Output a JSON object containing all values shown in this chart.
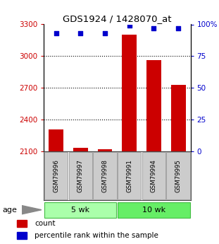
{
  "title": "GDS1924 / 1428070_at",
  "samples": [
    "GSM79996",
    "GSM79997",
    "GSM79998",
    "GSM79991",
    "GSM79994",
    "GSM79995"
  ],
  "counts": [
    2310,
    2130,
    2120,
    3200,
    2960,
    2730
  ],
  "percentiles": [
    93,
    93,
    93,
    99,
    97,
    97
  ],
  "ylim_left": [
    2100,
    3300
  ],
  "ylim_right": [
    0,
    100
  ],
  "yticks_left": [
    2100,
    2400,
    2700,
    3000,
    3300
  ],
  "yticks_right": [
    0,
    25,
    50,
    75,
    100
  ],
  "ytick_labels_right": [
    "0",
    "25",
    "50",
    "75",
    "100%"
  ],
  "groups": [
    {
      "label": "5 wk",
      "start": 0,
      "end": 3,
      "color": "#aaffaa"
    },
    {
      "label": "10 wk",
      "start": 3,
      "end": 6,
      "color": "#66ee66"
    }
  ],
  "bar_color": "#cc0000",
  "dot_color": "#0000cc",
  "age_label": "age",
  "legend_count_label": "count",
  "legend_pct_label": "percentile rank within the sample",
  "tick_label_color_left": "#cc0000",
  "tick_label_color_right": "#0000cc",
  "grid_ticks": [
    2400,
    2700,
    3000
  ]
}
